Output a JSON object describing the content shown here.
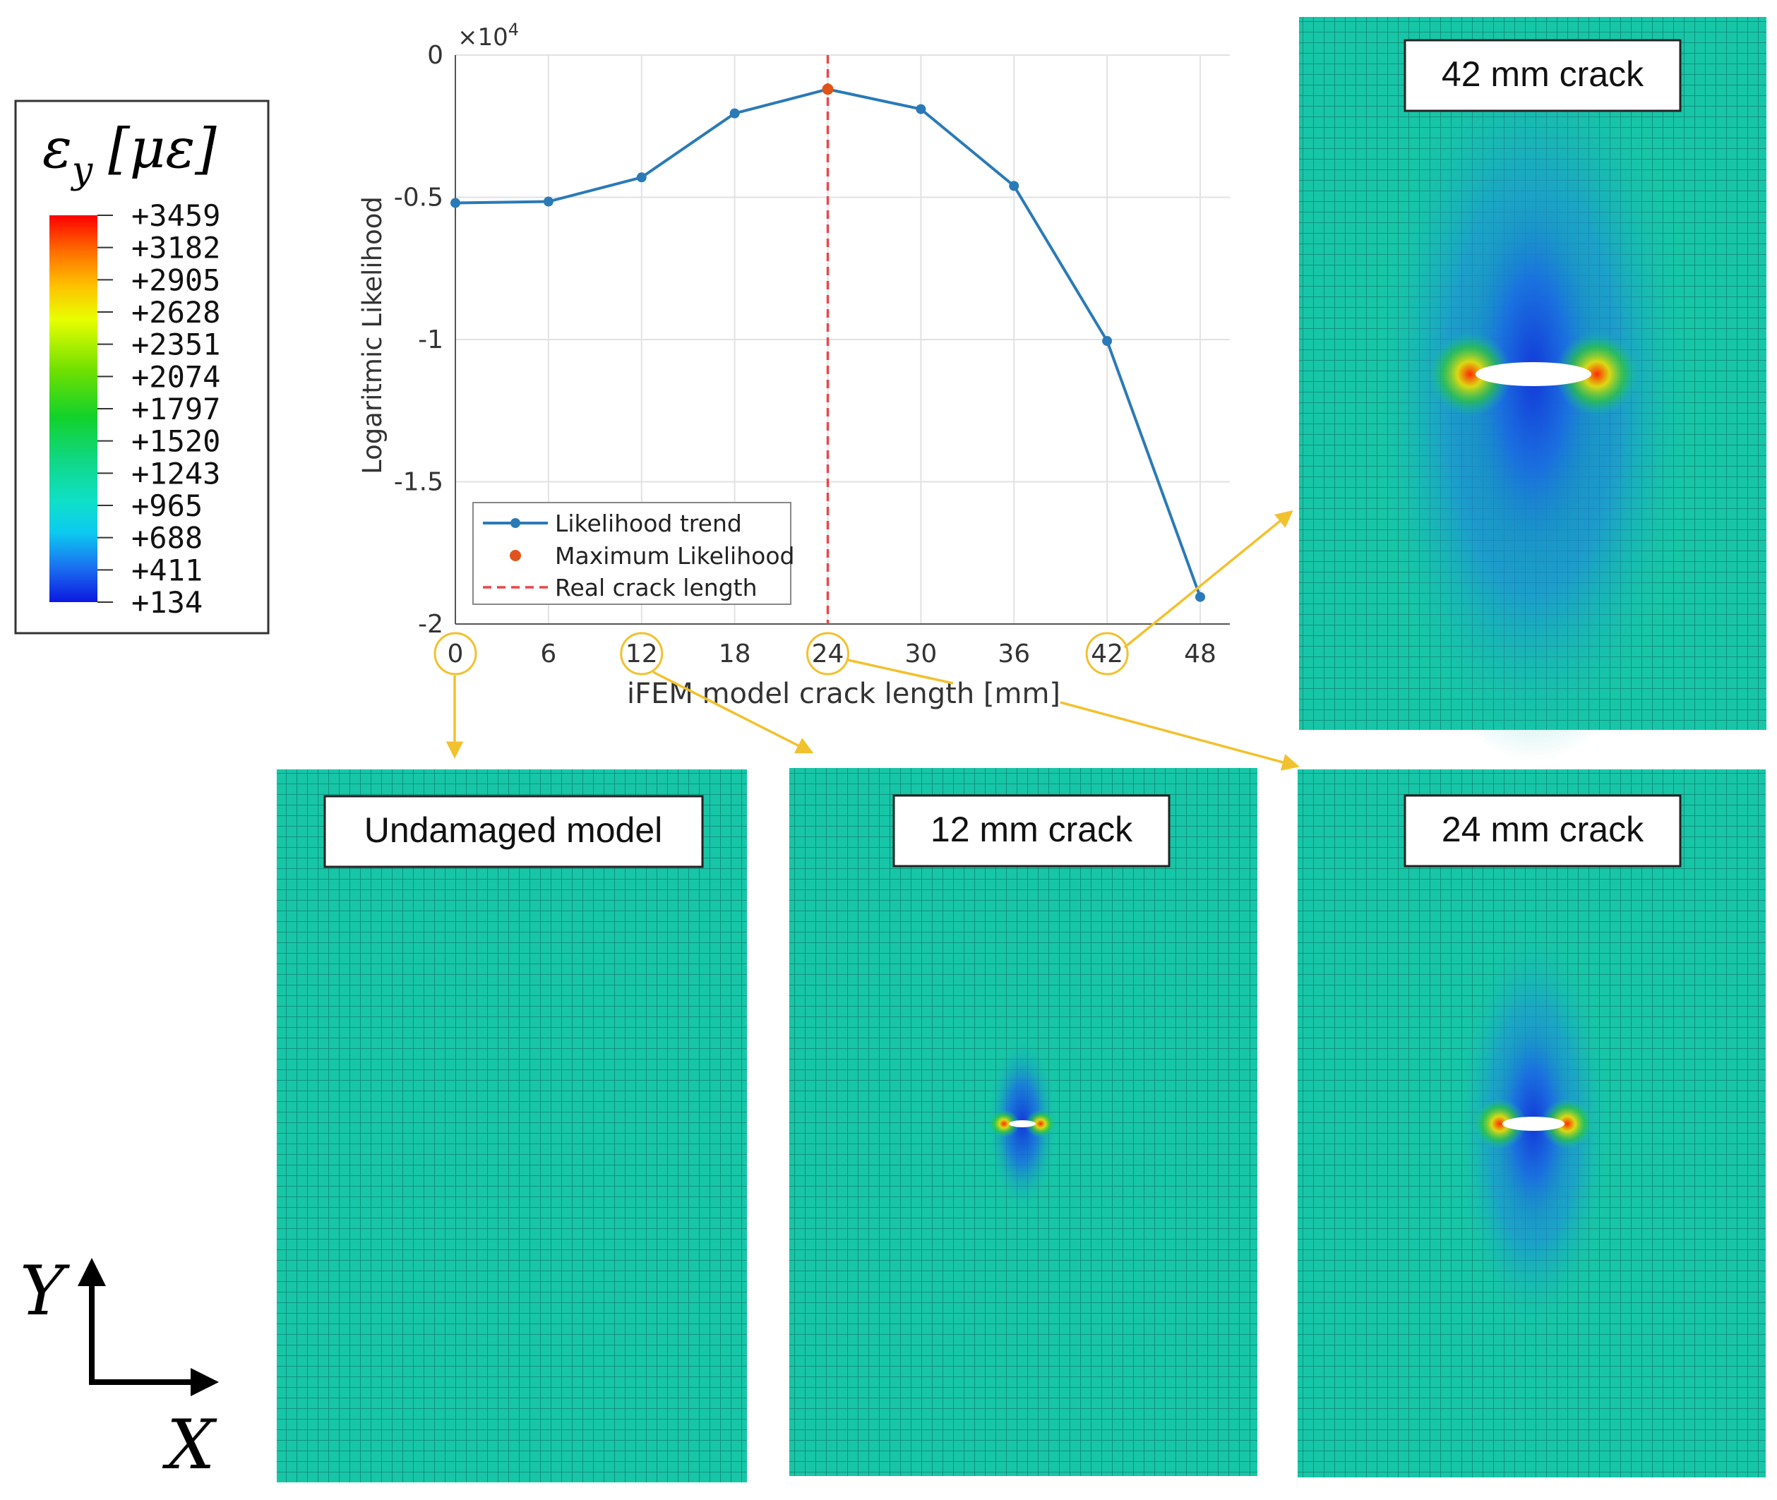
{
  "chart_data": {
    "type": "line",
    "title": "",
    "xlabel": "iFEM model crack length [mm]",
    "ylabel": "Logaritmic Likelihood",
    "y_exponent": "×10",
    "y_exponent_power": "4",
    "x_ticks": [
      "0",
      "6",
      "12",
      "18",
      "24",
      "30",
      "36",
      "42",
      "48"
    ],
    "y_ticks": [
      "0",
      "-0.5",
      "-1",
      "-1.5",
      "-2"
    ],
    "xlim": [
      0,
      48
    ],
    "ylim": [
      -20000,
      0
    ],
    "grid": true,
    "legend_position": "lower-left",
    "series": [
      {
        "name": "Likelihood trend",
        "x": [
          0,
          6,
          12,
          18,
          24,
          30,
          36,
          42,
          48
        ],
        "y": [
          -5200,
          -5150,
          -4300,
          -2050,
          -1200,
          -1900,
          -4600,
          -10050,
          -19050
        ],
        "color": "#2a7ab7"
      },
      {
        "name": "Maximum Likelihood",
        "x": [
          24
        ],
        "y": [
          -1200
        ],
        "color": "#e0541c"
      },
      {
        "name": "Real crack length",
        "x": [
          24,
          24
        ],
        "y": [
          0,
          -20000
        ],
        "color": "#e8474b",
        "style": "dashed"
      }
    ]
  },
  "colorbar": {
    "title_var": "ε",
    "title_sub": "y",
    "title_unit": "[με]",
    "ticks": [
      "+3459",
      "+3182",
      "+2905",
      "+2628",
      "+2351",
      "+2074",
      "+1797",
      "+1520",
      "+1243",
      "+965",
      "+688",
      "+411",
      "+134"
    ],
    "colors": [
      "#ff0000",
      "#ff5a00",
      "#ff9a00",
      "#ffd400",
      "#e7ff00",
      "#a8f000",
      "#5cdc00",
      "#18d21a",
      "#12d66a",
      "#10e2bb",
      "#0cc8ee",
      "#1a72f0",
      "#1020e6"
    ]
  },
  "panels": {
    "undamaged": {
      "label": "Undamaged model",
      "crack_mm": 0
    },
    "crack12": {
      "label": "12 mm crack",
      "crack_mm": 12
    },
    "crack24": {
      "label": "24 mm crack",
      "crack_mm": 24
    },
    "crack42": {
      "label": "42 mm crack",
      "crack_mm": 42
    }
  },
  "axes_triad": {
    "y_label": "Y",
    "x_label": "X"
  },
  "colors": {
    "plate": "#17c6a7",
    "mesh_line": "#0c6a60",
    "highlight": "#f2c12e"
  }
}
